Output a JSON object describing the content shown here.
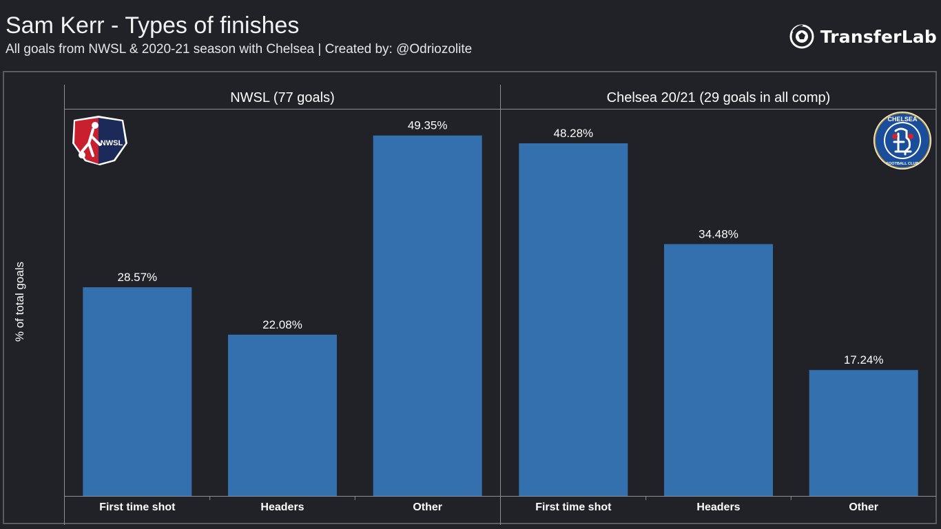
{
  "header": {
    "title": "Sam Kerr - Types of finishes",
    "subtitle": "All goals from NWSL & 2020-21 season with Chelsea  |  Created by: @Odriozolite",
    "brand": "TransferLab"
  },
  "icons": {
    "brand": "soccer-ball-icon",
    "panel_logos": [
      "nwsl-logo",
      "chelsea-crest-logo"
    ]
  },
  "colors": {
    "background": "#202228",
    "bar": "#3470ad",
    "frame": "#5a5c62",
    "text": "#ffffff"
  },
  "chart_data": {
    "type": "bar",
    "ylabel": "% of total goals",
    "ylim": [
      0,
      53
    ],
    "grid": false,
    "value_suffix": "%",
    "categories": [
      "First time shot",
      "Headers",
      "Other"
    ],
    "panels": [
      {
        "name": "NWSL (77 goals)",
        "values": [
          28.57,
          22.08,
          49.35
        ]
      },
      {
        "name": "Chelsea 20/21 (29 goals in all comp)",
        "values": [
          48.28,
          34.48,
          17.24
        ]
      }
    ]
  }
}
